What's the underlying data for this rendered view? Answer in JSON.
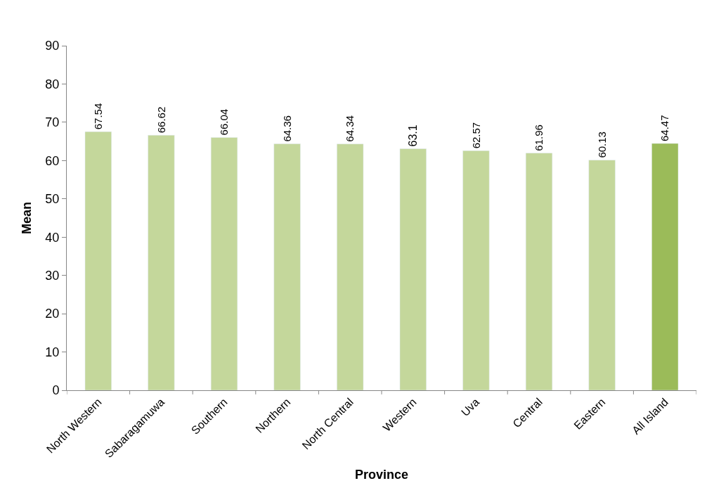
{
  "chart_data": {
    "type": "bar",
    "xlabel": "Province",
    "ylabel": "Mean",
    "categories": [
      "North Western",
      "Sabaragamuwa",
      "Southern",
      "Northern",
      "North Central",
      "Western",
      "Uva",
      "Central",
      "Eastern",
      "All Island"
    ],
    "values": [
      67.54,
      66.62,
      66.04,
      64.36,
      64.34,
      63.1,
      62.57,
      61.96,
      60.13,
      64.47
    ],
    "colors": [
      "#c4d79b",
      "#c4d79b",
      "#c4d79b",
      "#c4d79b",
      "#c4d79b",
      "#c4d79b",
      "#c4d79b",
      "#c4d79b",
      "#c4d79b",
      "#9bbb59"
    ],
    "ylim": [
      0,
      90
    ],
    "yticks": [
      0,
      10,
      20,
      30,
      40,
      50,
      60,
      70,
      80,
      90
    ],
    "data_labels": true,
    "legend": false
  }
}
